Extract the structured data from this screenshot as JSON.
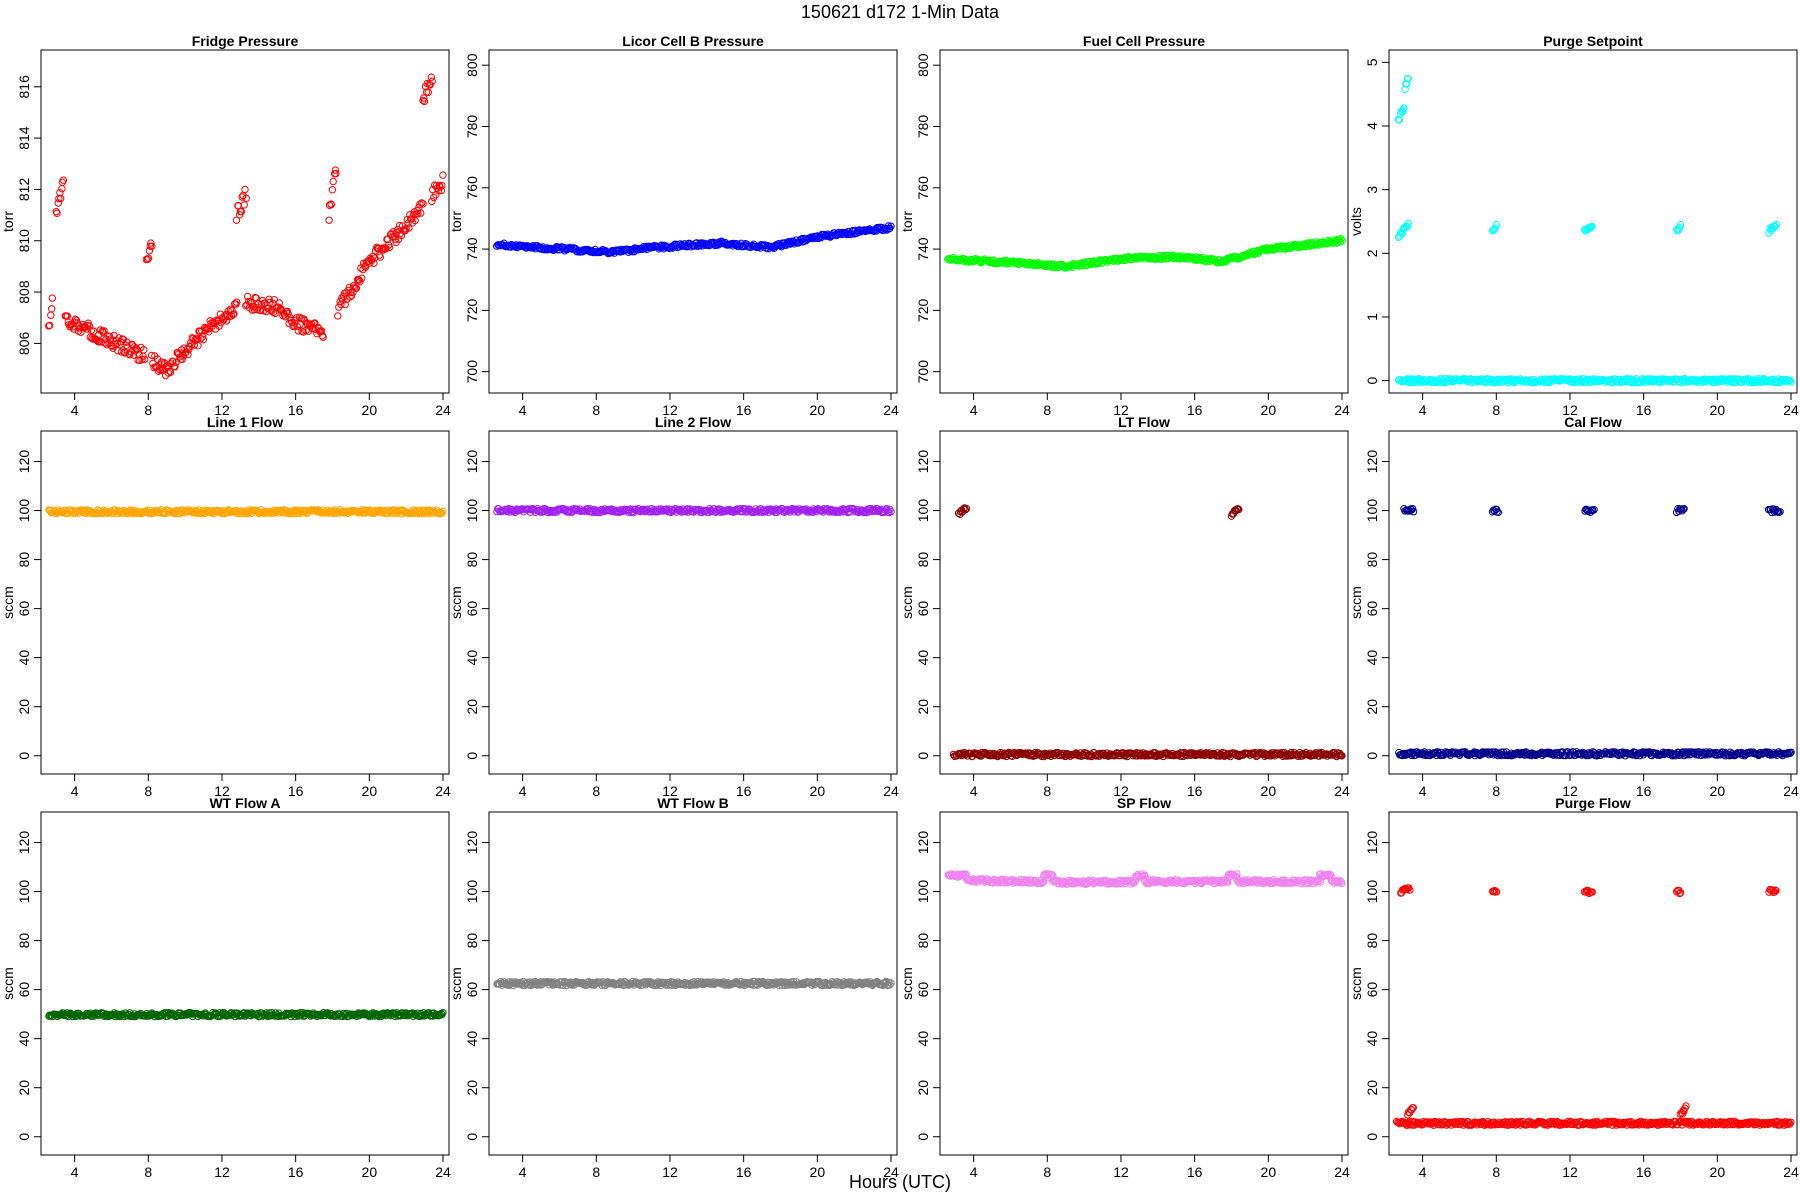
{
  "figure": {
    "title": "150621   d172   1-Min Data",
    "xlabel": "Hours (UTC)"
  },
  "chart_data": [
    {
      "type": "scatter",
      "title": "Fridge Pressure",
      "ylabel": "torr",
      "xlim": [
        2.5,
        24
      ],
      "ylim": [
        804.3,
        817.2
      ],
      "xticks": [
        4,
        8,
        12,
        16,
        20,
        24
      ],
      "yticks": [
        806,
        808,
        810,
        812,
        814,
        816
      ],
      "color": "#ff0000",
      "marker": "open-circle",
      "segments": [
        {
          "x": [
            2.6,
            2.8
          ],
          "y": [
            806.5,
            807.8
          ]
        },
        {
          "x": [
            3.0,
            3.4
          ],
          "y": [
            811.2,
            812.3
          ]
        },
        {
          "x": [
            3.5,
            5.0,
            7.0,
            7.8
          ],
          "y": [
            807.0,
            806.4,
            805.8,
            805.5
          ]
        },
        {
          "x": [
            7.9,
            8.2
          ],
          "y": [
            809.0,
            809.8
          ]
        },
        {
          "x": [
            8.2,
            9.0,
            11.0,
            12.8
          ],
          "y": [
            805.3,
            805.0,
            806.4,
            807.4
          ]
        },
        {
          "x": [
            12.8,
            13.3
          ],
          "y": [
            811.0,
            811.8
          ]
        },
        {
          "x": [
            13.3,
            15.0,
            16.0,
            17.5
          ],
          "y": [
            807.6,
            807.4,
            806.8,
            806.4
          ]
        },
        {
          "x": [
            17.8,
            18.2
          ],
          "y": [
            811.0,
            812.8
          ]
        },
        {
          "x": [
            18.3,
            20.0,
            22.0,
            22.9
          ],
          "y": [
            807.3,
            809.2,
            810.6,
            811.3
          ]
        },
        {
          "x": [
            22.9,
            23.4
          ],
          "y": [
            815.5,
            816.4
          ]
        },
        {
          "x": [
            23.4,
            24.0
          ],
          "y": [
            811.8,
            812.3
          ]
        }
      ]
    },
    {
      "type": "scatter",
      "title": "Licor Cell B Pressure",
      "ylabel": "torr",
      "xlim": [
        2.5,
        24
      ],
      "ylim": [
        695,
        803
      ],
      "xticks": [
        4,
        8,
        12,
        16,
        20,
        24
      ],
      "yticks": [
        700,
        720,
        740,
        760,
        780,
        800
      ],
      "color": "#0000ff",
      "marker": "open-circle",
      "segments": [
        {
          "x": [
            2.6,
            5.0,
            9.0,
            11.0,
            15.0,
            16.0,
            17.5,
            20.0,
            24.0
          ],
          "y": [
            741.5,
            740.5,
            739.0,
            740.5,
            742.0,
            741.2,
            740.6,
            744.0,
            747.0
          ]
        }
      ]
    },
    {
      "type": "scatter",
      "title": "Fuel Cell Pressure",
      "ylabel": "torr",
      "xlim": [
        2.5,
        24
      ],
      "ylim": [
        695,
        803
      ],
      "xticks": [
        4,
        8,
        12,
        16,
        20,
        24
      ],
      "yticks": [
        700,
        720,
        740,
        760,
        780,
        800
      ],
      "color": "#00ff00",
      "marker": "open-circle",
      "segments": [
        {
          "x": [
            2.6,
            5.0,
            9.0,
            12.0,
            15.0,
            16.0,
            17.5,
            20.0,
            24.0
          ],
          "y": [
            736.8,
            736.0,
            734.3,
            736.8,
            737.5,
            736.9,
            736.0,
            740.0,
            742.8
          ]
        }
      ]
    },
    {
      "type": "scatter",
      "title": "Purge Setpoint",
      "ylabel": "volts",
      "xlim": [
        2.5,
        24
      ],
      "ylim": [
        -0.1,
        5.1
      ],
      "xticks": [
        4,
        8,
        12,
        16,
        20,
        24
      ],
      "yticks": [
        0,
        1,
        2,
        3,
        4,
        5
      ],
      "color": "#00ffff",
      "marker": "open-circle",
      "segments": [
        {
          "x": [
            2.7,
            24.0
          ],
          "y": [
            0,
            0
          ]
        },
        {
          "x": [
            2.7,
            3.0
          ],
          "y": [
            4.1,
            4.3
          ]
        },
        {
          "x": [
            3.05,
            3.2
          ],
          "y": [
            4.6,
            4.75
          ]
        },
        {
          "x": [
            2.7,
            3.2
          ],
          "y": [
            2.25,
            2.45
          ]
        },
        {
          "x": [
            7.8,
            8.0
          ],
          "y": [
            2.35,
            2.45
          ]
        },
        {
          "x": [
            12.8,
            13.2
          ],
          "y": [
            2.35,
            2.45
          ]
        },
        {
          "x": [
            17.8,
            18.0
          ],
          "y": [
            2.35,
            2.45
          ]
        },
        {
          "x": [
            22.8,
            23.2
          ],
          "y": [
            2.35,
            2.45
          ]
        }
      ]
    },
    {
      "type": "scatter",
      "title": "Line 1 Flow",
      "ylabel": "sccm",
      "xlim": [
        2.5,
        24
      ],
      "ylim": [
        -5,
        130
      ],
      "xticks": [
        4,
        8,
        12,
        16,
        20,
        24
      ],
      "yticks": [
        0,
        20,
        40,
        60,
        80,
        100,
        120
      ],
      "color": "#ffa500",
      "marker": "open-circle",
      "segments": [
        {
          "x": [
            2.6,
            24.0
          ],
          "y": [
            99.5,
            99.5
          ]
        }
      ]
    },
    {
      "type": "scatter",
      "title": "Line 2 Flow",
      "ylabel": "sccm",
      "xlim": [
        2.5,
        24
      ],
      "ylim": [
        -5,
        130
      ],
      "xticks": [
        4,
        8,
        12,
        16,
        20,
        24
      ],
      "yticks": [
        0,
        20,
        40,
        60,
        80,
        100,
        120
      ],
      "color": "#a020f0",
      "marker": "open-circle",
      "segments": [
        {
          "x": [
            2.6,
            24.0
          ],
          "y": [
            100,
            100
          ]
        }
      ]
    },
    {
      "type": "scatter",
      "title": "LT Flow",
      "ylabel": "sccm",
      "xlim": [
        2.5,
        24
      ],
      "ylim": [
        -5,
        130
      ],
      "xticks": [
        4,
        8,
        12,
        16,
        20,
        24
      ],
      "yticks": [
        0,
        20,
        40,
        60,
        80,
        100,
        120
      ],
      "color": "#8b0000",
      "marker": "open-circle",
      "segments": [
        {
          "x": [
            2.9,
            24.0
          ],
          "y": [
            0.5,
            0.5
          ]
        },
        {
          "x": [
            3.2,
            3.6
          ],
          "y": [
            98.5,
            101
          ]
        },
        {
          "x": [
            18.0,
            18.4
          ],
          "y": [
            98,
            101
          ]
        }
      ]
    },
    {
      "type": "scatter",
      "title": "Cal Flow",
      "ylabel": "sccm",
      "xlim": [
        2.5,
        24
      ],
      "ylim": [
        -5,
        130
      ],
      "xticks": [
        4,
        8,
        12,
        16,
        20,
        24
      ],
      "yticks": [
        0,
        20,
        40,
        60,
        80,
        100,
        120
      ],
      "color": "#00008b",
      "marker": "open-circle",
      "segments": [
        {
          "x": [
            2.7,
            24.0
          ],
          "y": [
            0.8,
            0.8
          ]
        },
        {
          "x": [
            3.0,
            3.5
          ],
          "y": [
            100,
            100
          ]
        },
        {
          "x": [
            7.8,
            8.1
          ],
          "y": [
            100,
            100
          ]
        },
        {
          "x": [
            12.8,
            13.3
          ],
          "y": [
            100,
            100
          ]
        },
        {
          "x": [
            17.8,
            18.2
          ],
          "y": [
            100,
            100
          ]
        },
        {
          "x": [
            22.8,
            23.4
          ],
          "y": [
            100,
            100
          ]
        }
      ]
    },
    {
      "type": "scatter",
      "title": "WT Flow A",
      "ylabel": "sccm",
      "xlim": [
        2.5,
        24
      ],
      "ylim": [
        -5,
        130
      ],
      "xticks": [
        4,
        8,
        12,
        16,
        20,
        24
      ],
      "yticks": [
        0,
        20,
        40,
        60,
        80,
        100,
        120
      ],
      "color": "#006400",
      "marker": "open-circle",
      "segments": [
        {
          "x": [
            2.6,
            24.0
          ],
          "y": [
            49.8,
            49.8
          ]
        }
      ]
    },
    {
      "type": "scatter",
      "title": "WT Flow B",
      "ylabel": "sccm",
      "xlim": [
        2.5,
        24
      ],
      "ylim": [
        -5,
        130
      ],
      "xticks": [
        4,
        8,
        12,
        16,
        20,
        24
      ],
      "yticks": [
        0,
        20,
        40,
        60,
        80,
        100,
        120
      ],
      "color": "#808080",
      "marker": "open-circle",
      "segments": [
        {
          "x": [
            2.6,
            24.0
          ],
          "y": [
            62.5,
            62.5
          ]
        }
      ]
    },
    {
      "type": "scatter",
      "title": "SP Flow",
      "ylabel": "sccm",
      "xlim": [
        2.5,
        24
      ],
      "ylim": [
        -5,
        130
      ],
      "xticks": [
        4,
        8,
        12,
        16,
        20,
        24
      ],
      "yticks": [
        0,
        20,
        40,
        60,
        80,
        100,
        120
      ],
      "color": "#ee82ee",
      "marker": "open-circle",
      "segments": [
        {
          "x": [
            2.6,
            3.6
          ],
          "y": [
            106.5,
            106.5
          ]
        },
        {
          "x": [
            3.6,
            7.8
          ],
          "y": [
            104.5,
            104.0
          ]
        },
        {
          "x": [
            7.8,
            8.3
          ],
          "y": [
            106.5,
            106.5
          ]
        },
        {
          "x": [
            8.3,
            12.8
          ],
          "y": [
            103.8,
            103.8
          ]
        },
        {
          "x": [
            12.8,
            13.3
          ],
          "y": [
            106.5,
            106.5
          ]
        },
        {
          "x": [
            13.3,
            17.8
          ],
          "y": [
            104.0,
            104.0
          ]
        },
        {
          "x": [
            17.8,
            18.3
          ],
          "y": [
            106.5,
            106.5
          ]
        },
        {
          "x": [
            18.3,
            22.8
          ],
          "y": [
            104.0,
            104.0
          ]
        },
        {
          "x": [
            22.8,
            23.4
          ],
          "y": [
            106.5,
            106.5
          ]
        },
        {
          "x": [
            23.4,
            24.0
          ],
          "y": [
            104.0,
            104.0
          ]
        }
      ]
    },
    {
      "type": "scatter",
      "title": "Purge Flow",
      "ylabel": "sccm",
      "xlim": [
        2.5,
        24
      ],
      "ylim": [
        -5,
        130
      ],
      "xticks": [
        4,
        8,
        12,
        16,
        20,
        24
      ],
      "yticks": [
        0,
        20,
        40,
        60,
        80,
        100,
        120
      ],
      "color": "#ff0000",
      "marker": "open-circle",
      "segments": [
        {
          "x": [
            2.6,
            24.0
          ],
          "y": [
            5.5,
            5.5
          ]
        },
        {
          "x": [
            3.2,
            3.5
          ],
          "y": [
            9,
            12
          ]
        },
        {
          "x": [
            18.0,
            18.3
          ],
          "y": [
            9,
            12
          ]
        },
        {
          "x": [
            2.8,
            3.3
          ],
          "y": [
            100,
            101
          ]
        },
        {
          "x": [
            7.8,
            8.0
          ],
          "y": [
            100,
            100
          ]
        },
        {
          "x": [
            12.8,
            13.2
          ],
          "y": [
            100,
            100
          ]
        },
        {
          "x": [
            17.8,
            18.0
          ],
          "y": [
            100,
            100
          ]
        },
        {
          "x": [
            22.8,
            23.2
          ],
          "y": [
            100,
            100
          ]
        }
      ]
    }
  ]
}
